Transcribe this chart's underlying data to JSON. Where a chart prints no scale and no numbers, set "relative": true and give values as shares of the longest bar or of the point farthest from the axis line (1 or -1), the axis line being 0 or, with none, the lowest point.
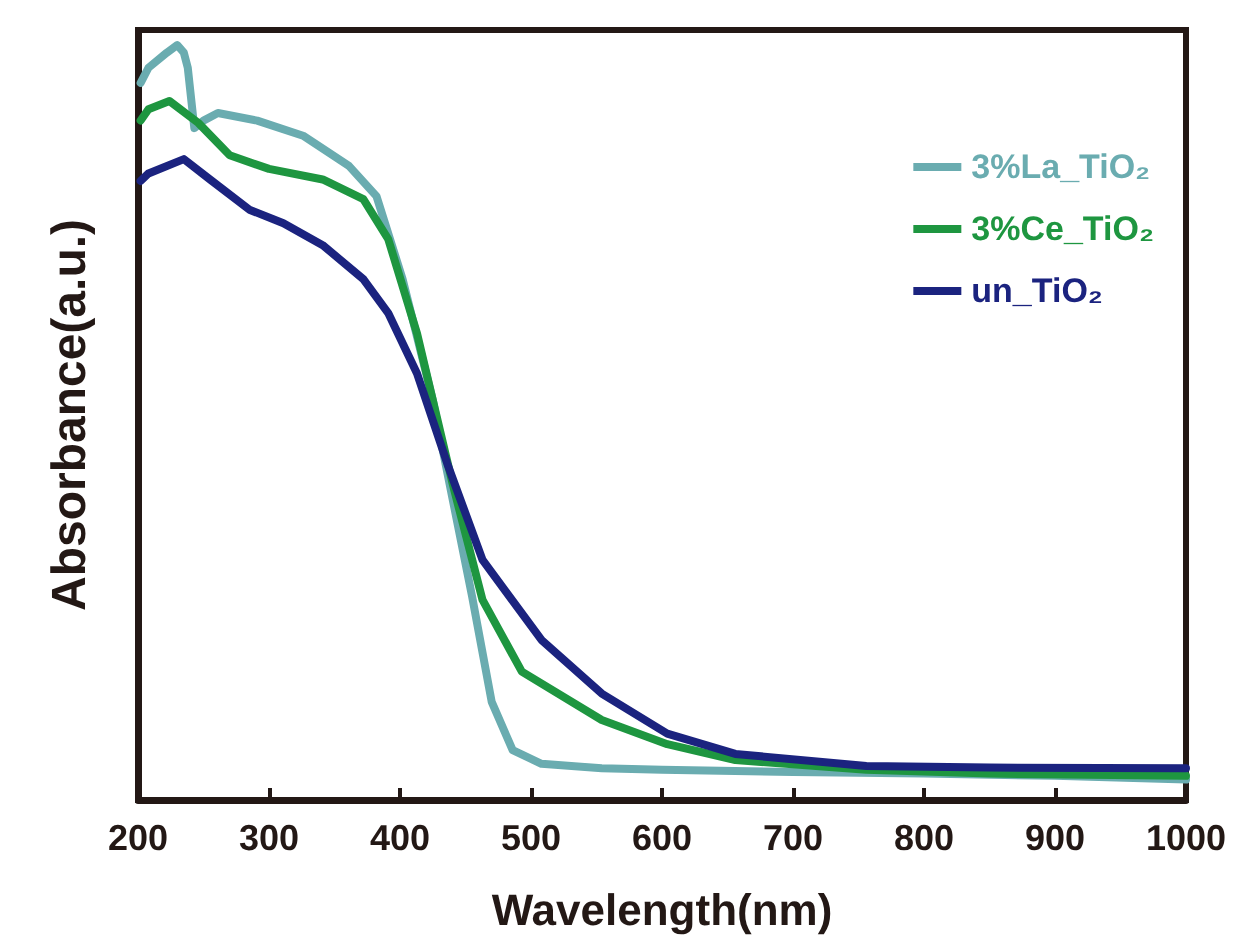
{
  "chart_data": {
    "type": "line",
    "xlabel": "Wavelength(nm)",
    "ylabel": "Absorbance(a.u.)",
    "relative": true,
    "xlim": [
      200,
      1000
    ],
    "xticks": [
      200,
      300,
      400,
      500,
      600,
      700,
      800,
      900,
      1000
    ],
    "legend": "top right",
    "grid": false,
    "marker": "none",
    "line_style": "solid",
    "series": [
      {
        "name": "3%La_TiO₂",
        "color": "#6aacb0",
        "x": [
          202,
          208,
          222,
          230,
          235,
          238,
          243,
          250,
          261,
          291,
          326,
          361,
          382,
          402,
          425,
          455,
          470,
          486,
          508,
          554,
          600,
          700,
          800,
          900,
          1000
        ],
        "values": [
          0.95,
          0.97,
          0.99,
          1.0,
          0.99,
          0.97,
          0.89,
          0.9,
          0.91,
          0.9,
          0.88,
          0.84,
          0.8,
          0.69,
          0.53,
          0.27,
          0.13,
          0.066,
          0.048,
          0.042,
          0.04,
          0.037,
          0.035,
          0.032,
          0.027
        ]
      },
      {
        "name": "3%Ce_TiO₂",
        "color": "#1e9640",
        "x": [
          202,
          208,
          224,
          246,
          270,
          300,
          341,
          372,
          391,
          413,
          440,
          463,
          493,
          554,
          604,
          656,
          756,
          850,
          1000
        ],
        "values": [
          0.9,
          0.915,
          0.926,
          0.897,
          0.854,
          0.836,
          0.822,
          0.796,
          0.743,
          0.618,
          0.42,
          0.265,
          0.17,
          0.106,
          0.074,
          0.053,
          0.04,
          0.035,
          0.032
        ]
      },
      {
        "name": "un_TiO₂",
        "color": "#1b237f",
        "x": [
          202,
          208,
          235,
          255,
          285,
          311,
          341,
          372,
          391,
          413,
          436,
          463,
          508,
          554,
          604,
          656,
          756,
          850,
          1000
        ],
        "values": [
          0.82,
          0.83,
          0.849,
          0.822,
          0.782,
          0.764,
          0.735,
          0.69,
          0.645,
          0.565,
          0.446,
          0.318,
          0.212,
          0.141,
          0.088,
          0.061,
          0.045,
          0.043,
          0.042
        ]
      }
    ]
  }
}
